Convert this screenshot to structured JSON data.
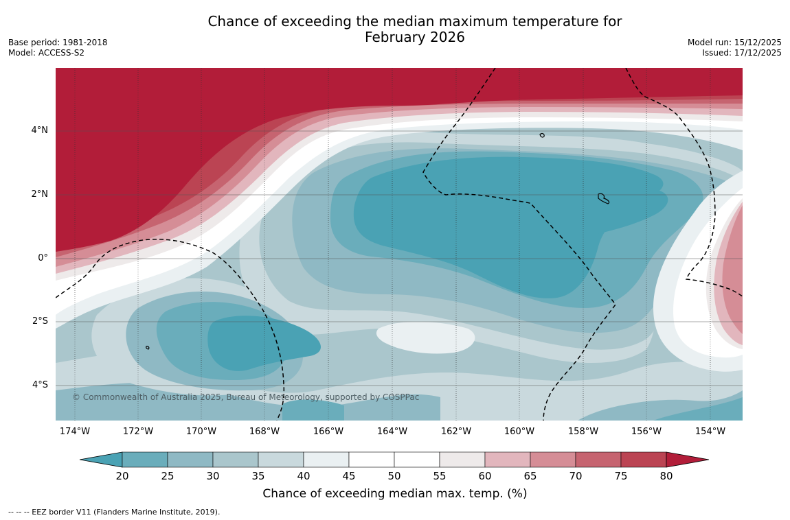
{
  "header": {
    "title_line1": "Chance of exceeding the median maximum temperature for",
    "title_line2": "February 2026",
    "base_period": "Base period: 1981-2018",
    "model": "Model: ACCESS-S2",
    "model_run": "Model run: 15/12/2025",
    "issued": "Issued: 17/12/2025"
  },
  "map": {
    "lat_labels": [
      "4°N",
      "2°N",
      "0°",
      "2°S",
      "4°S"
    ],
    "lon_labels": [
      "174°W",
      "172°W",
      "170°W",
      "168°W",
      "166°W",
      "164°W",
      "162°W",
      "160°W",
      "158°W",
      "156°W",
      "154°W"
    ],
    "copyright": "© Commonwealth of Australia 2025, Bureau of Meteorology, supported by COSPPac"
  },
  "colorbar": {
    "ticks": [
      "20",
      "25",
      "30",
      "35",
      "40",
      "45",
      "50",
      "55",
      "60",
      "65",
      "70",
      "75",
      "80"
    ],
    "label": "Chance of exceeding median max. temp. (%)",
    "colors": [
      "#4aa2b4",
      "#6aadbb",
      "#8fb9c4",
      "#aac6cc",
      "#c9d9dd",
      "#eaf0f2",
      "#ffffff",
      "#ffffff",
      "#eeeaea",
      "#e2b6bd",
      "#d58d96",
      "#c66470",
      "#bb4453",
      "#b21d39"
    ]
  },
  "footnote": "-- -- -- EEZ border V11 (Flanders Marine Institute, 2019)."
}
